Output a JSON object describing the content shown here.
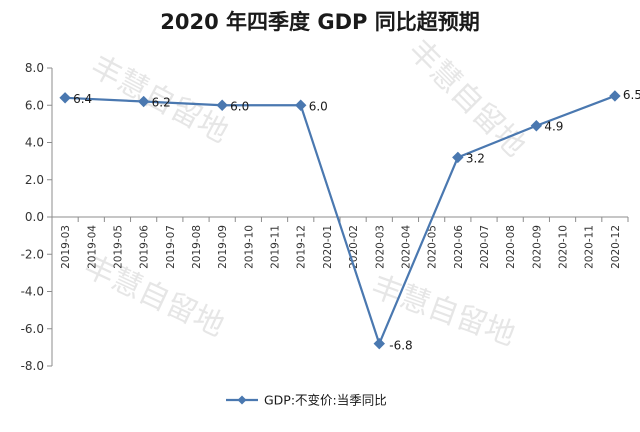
{
  "chart_data": {
    "type": "line",
    "title": "2020 年四季度 GDP 同比超预期",
    "categories": [
      "2019-03",
      "2019-04",
      "2019-05",
      "2019-06",
      "2019-07",
      "2019-08",
      "2019-09",
      "2019-10",
      "2019-11",
      "2019-12",
      "2020-01",
      "2020-02",
      "2020-03",
      "2020-04",
      "2020-05",
      "2020-06",
      "2020-07",
      "2020-08",
      "2020-09",
      "2020-10",
      "2020-11",
      "2020-12"
    ],
    "y_ticks": [
      "8.0",
      "6.0",
      "4.0",
      "2.0",
      "0.0",
      "-2.0",
      "-4.0",
      "-6.0",
      "-8.0"
    ],
    "ylim": [
      -8,
      8
    ],
    "series": [
      {
        "name": "GDP:不变价:当季同比",
        "color": "#4a78b0",
        "points": [
          {
            "x": "2019-03",
            "y": 6.4,
            "label": "6.4"
          },
          {
            "x": "2019-06",
            "y": 6.2,
            "label": "6.2"
          },
          {
            "x": "2019-09",
            "y": 6.0,
            "label": "6.0"
          },
          {
            "x": "2019-12",
            "y": 6.0,
            "label": "6.0"
          },
          {
            "x": "2020-03",
            "y": -6.8,
            "label": "-6.8"
          },
          {
            "x": "2020-06",
            "y": 3.2,
            "label": "3.2"
          },
          {
            "x": "2020-09",
            "y": 4.9,
            "label": "4.9"
          },
          {
            "x": "2020-12",
            "y": 6.5,
            "label": "6.5"
          }
        ]
      }
    ],
    "legend_position": "bottom",
    "grid": false,
    "watermark": "丰慧自留地"
  }
}
